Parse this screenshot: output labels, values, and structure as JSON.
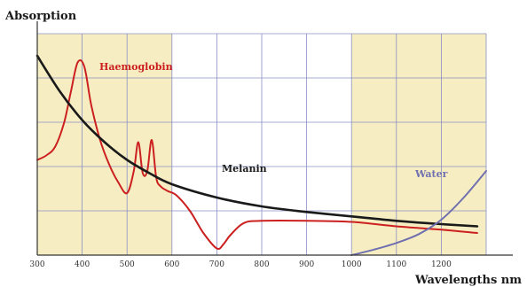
{
  "chart_data": {
    "type": "line",
    "title": "",
    "xlabel": "Wavelengths nm",
    "ylabel": "Absorption",
    "xlim": [
      300,
      1300
    ],
    "ylim": [
      0,
      10
    ],
    "x_ticks": [
      300,
      400,
      500,
      600,
      700,
      800,
      900,
      1000,
      1100,
      1200
    ],
    "grid": true,
    "shaded_regions": [
      [
        300,
        600
      ],
      [
        1000,
        1300
      ]
    ],
    "colors": {
      "shade": "#f6eec2",
      "grid": "#8a8fc4",
      "axis": "#333333"
    },
    "series": [
      {
        "name": "Haemoglobin",
        "color": "#cc2020",
        "x": [
          300,
          320,
          340,
          360,
          375,
          390,
          405,
          420,
          440,
          460,
          480,
          500,
          515,
          525,
          535,
          545,
          555,
          565,
          575,
          590,
          610,
          640,
          670,
          700,
          715,
          730,
          760,
          800,
          900,
          1000,
          1100,
          1200,
          1280
        ],
        "y": [
          4.3,
          4.5,
          4.9,
          6.0,
          7.4,
          8.7,
          8.5,
          6.8,
          5.2,
          4.1,
          3.3,
          2.8,
          3.8,
          5.1,
          3.7,
          3.8,
          5.2,
          3.5,
          3.1,
          2.9,
          2.7,
          2.0,
          1.0,
          0.3,
          0.5,
          0.9,
          1.45,
          1.55,
          1.55,
          1.5,
          1.3,
          1.15,
          1.0
        ]
      },
      {
        "name": "Melanin",
        "color": "#1a1a1a",
        "x": [
          300,
          350,
          400,
          450,
          500,
          550,
          600,
          700,
          800,
          900,
          1000,
          1100,
          1200,
          1280
        ],
        "y": [
          9.0,
          7.4,
          6.1,
          5.1,
          4.3,
          3.7,
          3.2,
          2.6,
          2.2,
          1.95,
          1.75,
          1.55,
          1.4,
          1.3
        ]
      },
      {
        "name": "Water",
        "color": "#7070b0",
        "x": [
          1000,
          1050,
          1100,
          1150,
          1200,
          1250,
          1300
        ],
        "y": [
          0.0,
          0.25,
          0.55,
          0.95,
          1.6,
          2.6,
          3.8
        ]
      }
    ]
  }
}
